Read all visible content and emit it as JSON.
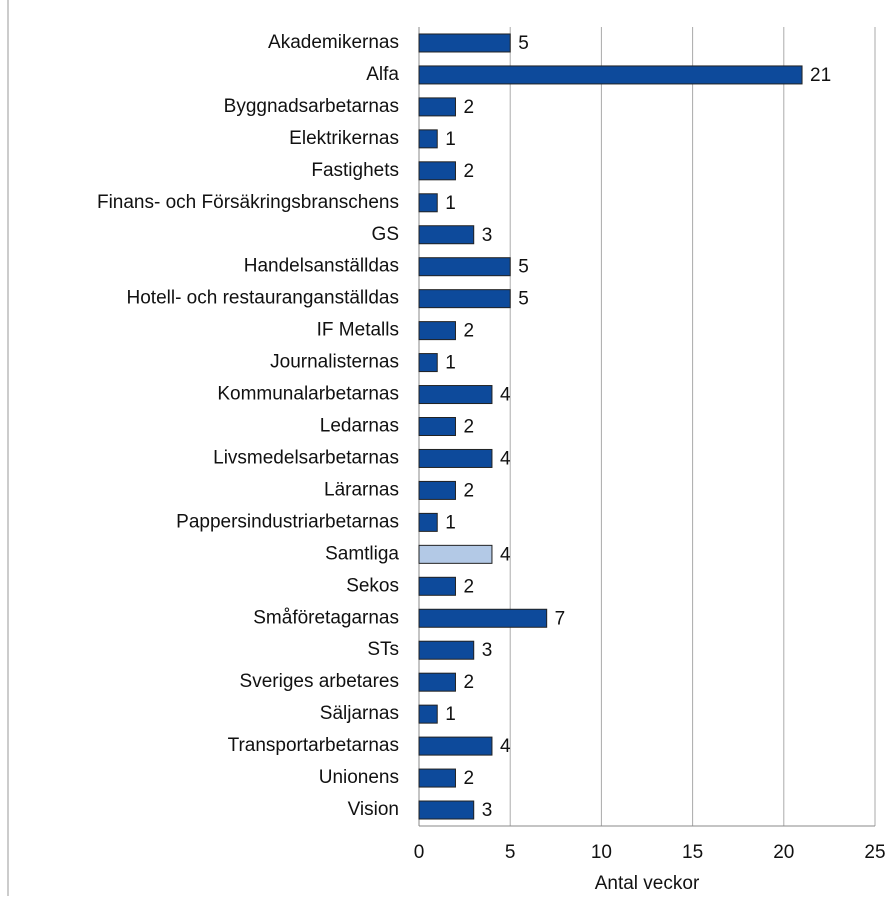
{
  "chart_data": {
    "type": "hbar",
    "categories": [
      "Akademikernas",
      "Alfa",
      "Byggnadsarbetarnas",
      "Elektrikernas",
      "Fastighets",
      "Finans- och Försäkringsbranschens",
      "GS",
      "Handelsanställdas",
      "Hotell- och restauranganställdas",
      "IF Metalls",
      "Journalisternas",
      "Kommunalarbetarnas",
      "Ledarnas",
      "Livsmedelsarbetarnas",
      "Lärarnas",
      "Pappersindustriarbetarnas",
      "Samtliga",
      "Sekos",
      "Småföretagarnas",
      "STs",
      "Sveriges arbetares",
      "Säljarnas",
      "Transportarbetarnas",
      "Unionens",
      "Vision"
    ],
    "values": [
      5,
      21,
      2,
      1,
      2,
      1,
      3,
      5,
      5,
      2,
      1,
      4,
      2,
      4,
      2,
      1,
      4,
      2,
      7,
      3,
      2,
      1,
      4,
      2,
      3
    ],
    "colors": [
      "#0d4a9b",
      "#0d4a9b",
      "#0d4a9b",
      "#0d4a9b",
      "#0d4a9b",
      "#0d4a9b",
      "#0d4a9b",
      "#0d4a9b",
      "#0d4a9b",
      "#0d4a9b",
      "#0d4a9b",
      "#0d4a9b",
      "#0d4a9b",
      "#0d4a9b",
      "#0d4a9b",
      "#0d4a9b",
      "#b3c9e6",
      "#0d4a9b",
      "#0d4a9b",
      "#0d4a9b",
      "#0d4a9b",
      "#0d4a9b",
      "#0d4a9b",
      "#0d4a9b",
      "#0d4a9b"
    ],
    "xlabel": "Antal veckor",
    "xlim": [
      0,
      25
    ],
    "xticks": [
      0,
      5,
      10,
      15,
      20,
      25
    ],
    "grid": true
  }
}
